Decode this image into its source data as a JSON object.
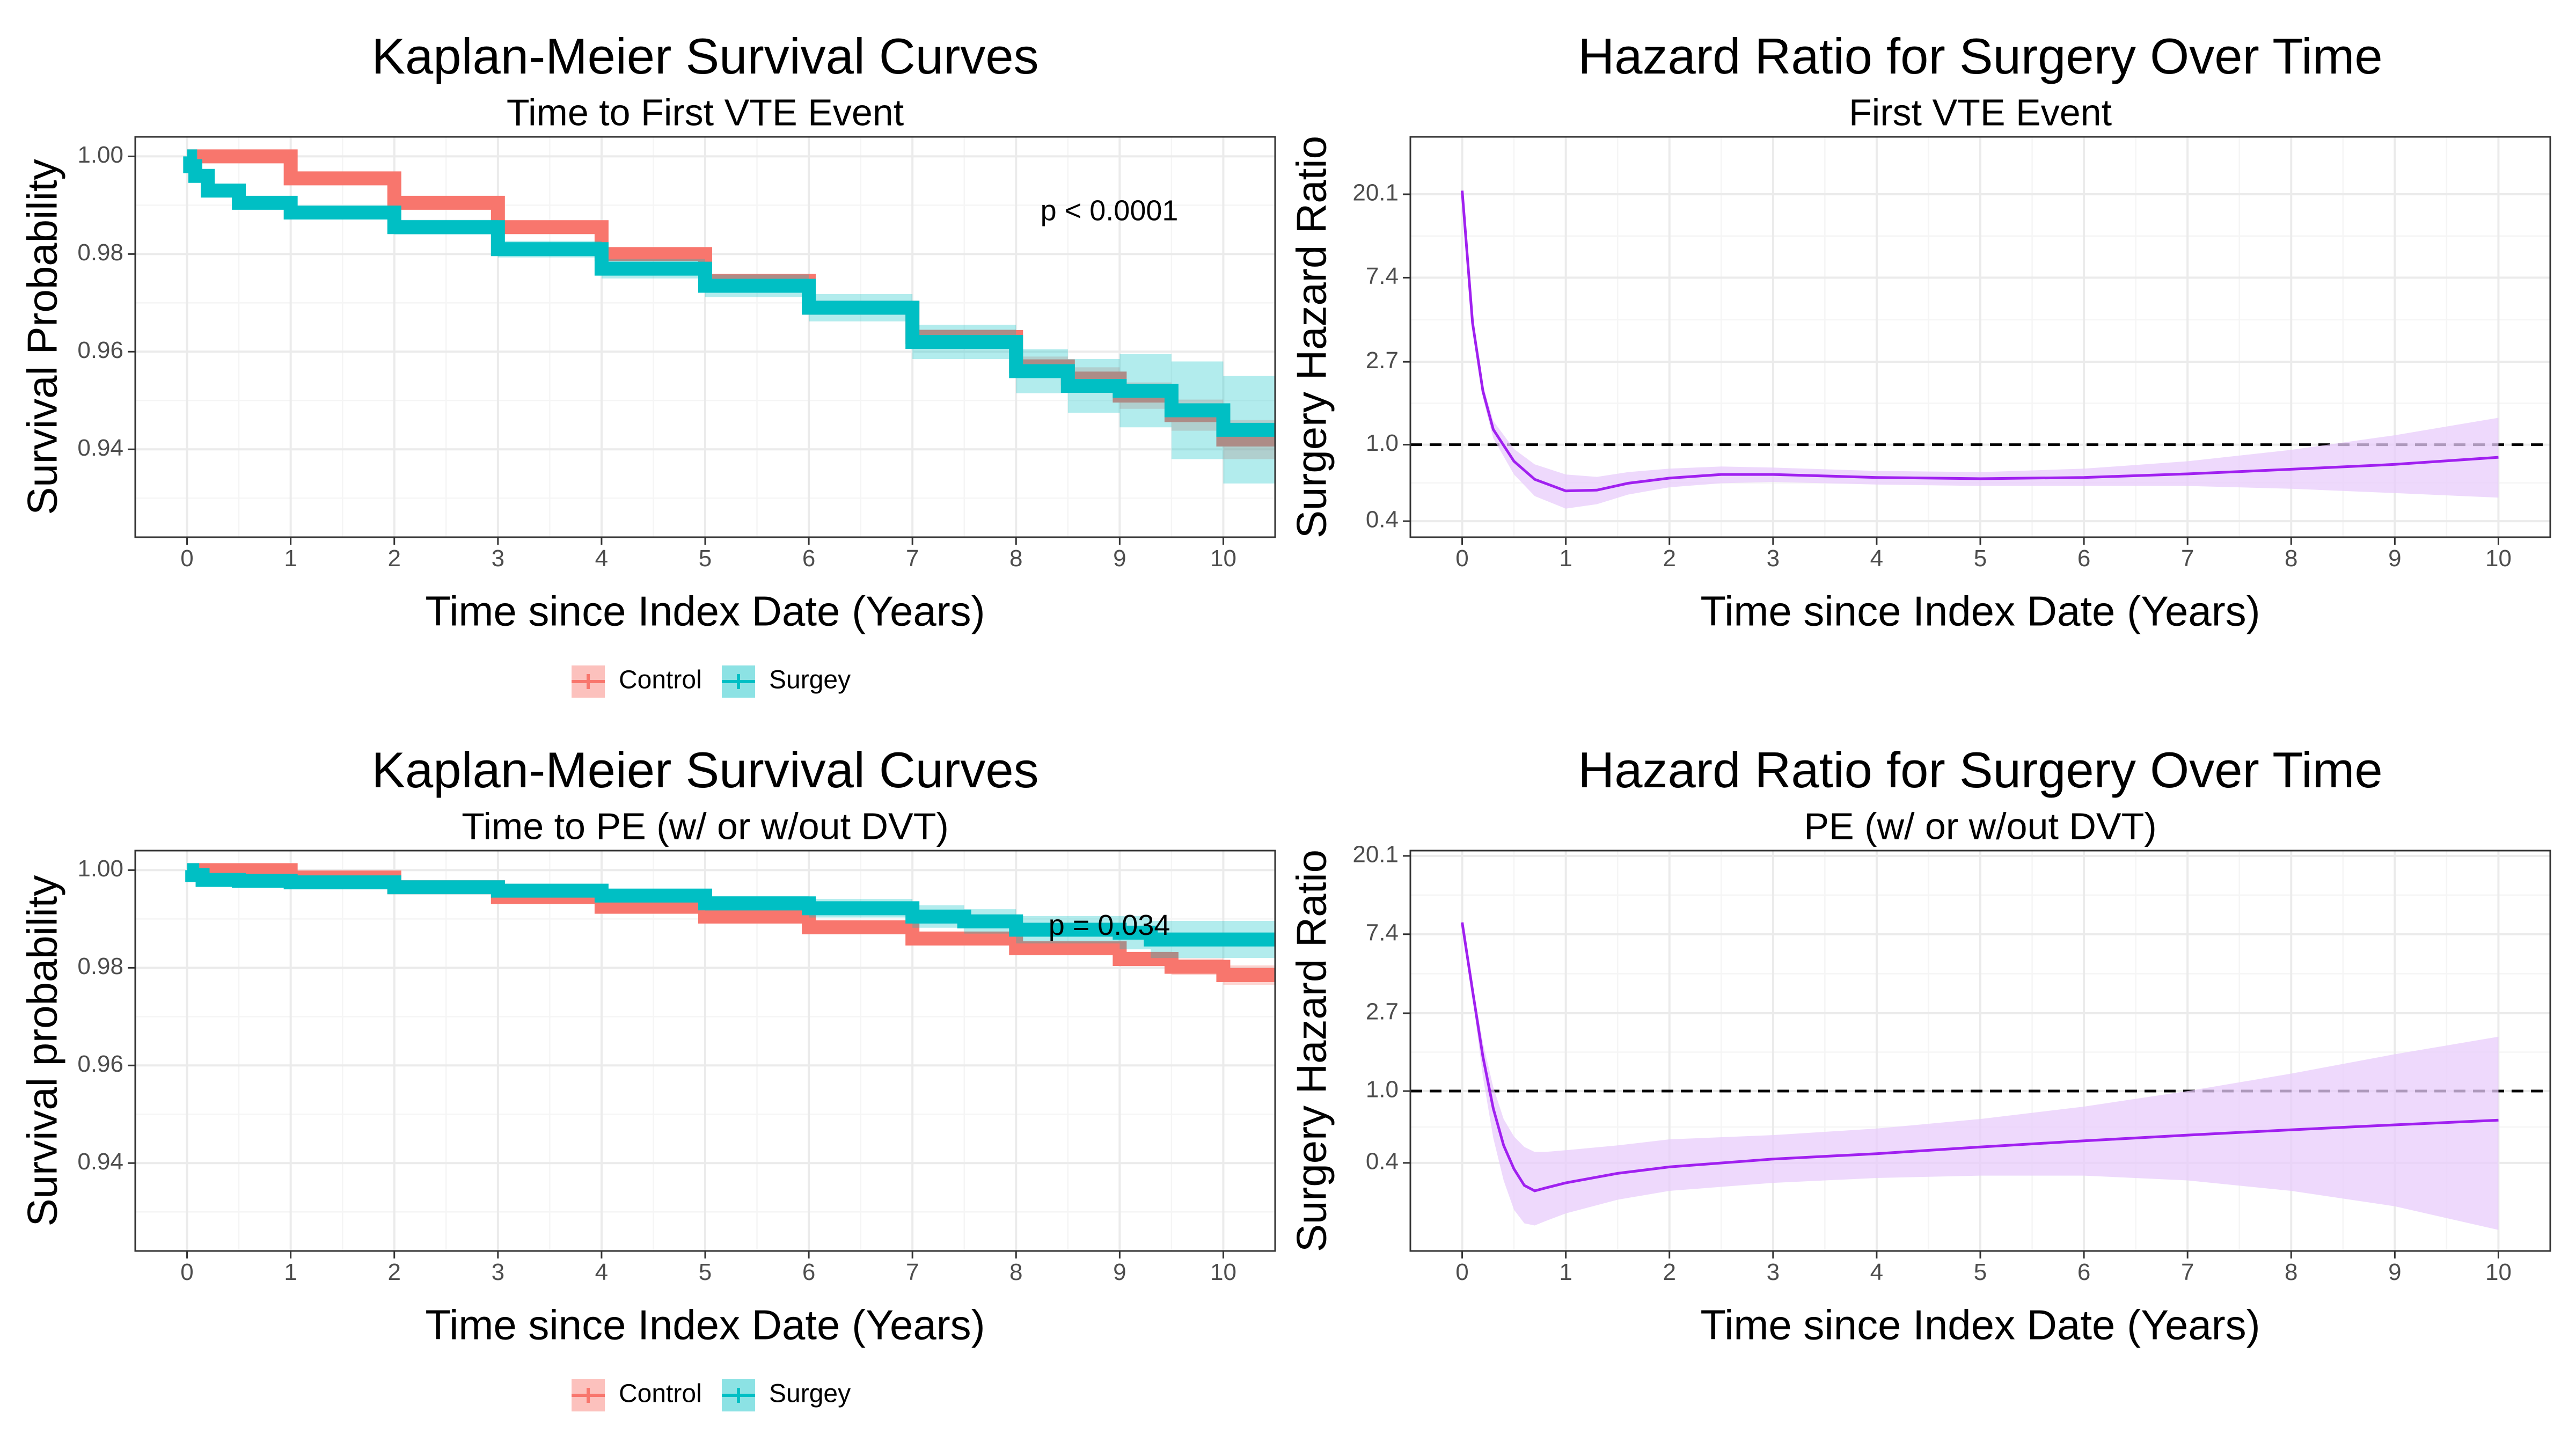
{
  "colors": {
    "control": "#F8766D",
    "surgery": "#00BFC4",
    "hazard": "#A020F0",
    "hazard_band": "#E8CCFB",
    "reference": "#000000"
  },
  "chart_data": [
    {
      "type": "line",
      "title": "Kaplan-Meier Survival Curves",
      "subtitle": "Time to First VTE Event",
      "xlabel": "Time since Index Date (Years)",
      "ylabel": "Survival Probability",
      "xlim": [
        -0.5,
        10.5
      ],
      "ylim": [
        0.922,
        1.004
      ],
      "x_ticks": [
        0,
        1,
        2,
        3,
        4,
        5,
        6,
        7,
        8,
        9,
        10
      ],
      "y_ticks": [
        0.94,
        0.96,
        0.98,
        1.0
      ],
      "y_tick_labels": [
        "0.94",
        "0.96",
        "0.98",
        "1.00"
      ],
      "grid": true,
      "annotation": {
        "text": "p < 0.0001",
        "x": 8.9,
        "y": 0.9885
      },
      "legend": {
        "position": "bottom",
        "entries": [
          "Control",
          "Surgey"
        ]
      },
      "series": [
        {
          "name": "Control",
          "color": "#F8766D",
          "x": [
            0,
            1,
            2,
            3,
            4,
            5,
            6,
            7,
            8,
            8.5,
            9,
            9.5,
            10,
            10.5
          ],
          "y": [
            1.0,
            0.9955,
            0.9905,
            0.9855,
            0.98,
            0.9745,
            0.969,
            0.963,
            0.957,
            0.9545,
            0.951,
            0.947,
            0.942,
            0.942
          ],
          "ci_low": [
            1.0,
            0.9952,
            0.99,
            0.9849,
            0.9792,
            0.9735,
            0.9677,
            0.9614,
            0.955,
            0.9522,
            0.9483,
            0.9438,
            0.938,
            0.938
          ],
          "ci_high": [
            1.0,
            0.9958,
            0.991,
            0.9861,
            0.9808,
            0.9755,
            0.9703,
            0.9646,
            0.959,
            0.9568,
            0.9537,
            0.9502,
            0.946,
            0.946
          ]
        },
        {
          "name": "Surgey",
          "color": "#00BFC4",
          "x": [
            0,
            0.03,
            0.08,
            0.2,
            0.5,
            1,
            2,
            3,
            4,
            5,
            6,
            7,
            8,
            8.5,
            9,
            9.5,
            10,
            10.5
          ],
          "y": [
            1.0,
            0.998,
            0.996,
            0.993,
            0.9905,
            0.9885,
            0.9855,
            0.981,
            0.977,
            0.9735,
            0.969,
            0.962,
            0.956,
            0.953,
            0.952,
            0.948,
            0.944,
            0.944
          ],
          "ci_low": [
            1.0,
            0.9975,
            0.9953,
            0.9921,
            0.9894,
            0.9872,
            0.984,
            0.9793,
            0.975,
            0.9712,
            0.9662,
            0.9585,
            0.9515,
            0.9475,
            0.9445,
            0.938,
            0.933,
            0.933
          ],
          "ci_high": [
            1.0,
            0.9985,
            0.9967,
            0.9939,
            0.9916,
            0.9898,
            0.987,
            0.9827,
            0.979,
            0.9758,
            0.9718,
            0.9655,
            0.9605,
            0.9585,
            0.9595,
            0.958,
            0.955,
            0.955
          ]
        }
      ]
    },
    {
      "type": "line",
      "title": "Hazard Ratio for Surgery Over Time",
      "subtitle": "First VTE Event",
      "xlabel": "Time since Index Date (Years)",
      "ylabel": "Surgery Hazard Ratio",
      "y_scale": "log",
      "xlim": [
        -0.5,
        10.5
      ],
      "ylim": [
        0.33,
        40
      ],
      "x_ticks": [
        0,
        1,
        2,
        3,
        4,
        5,
        6,
        7,
        8,
        9,
        10
      ],
      "y_ticks": [
        0.4,
        1.0,
        2.7,
        7.4,
        20.1
      ],
      "y_tick_labels": [
        "0.4",
        "1.0",
        "2.7",
        "7.4",
        "20.1"
      ],
      "grid": true,
      "reference_line": 1.0,
      "series": [
        {
          "name": "",
          "color": "#A020F0",
          "x": [
            0,
            0.1,
            0.2,
            0.3,
            0.5,
            0.7,
            1.0,
            1.3,
            1.6,
            2,
            2.5,
            3,
            4,
            5,
            6,
            7,
            8,
            9,
            10
          ],
          "y": [
            21.0,
            4.3,
            1.9,
            1.2,
            0.82,
            0.66,
            0.575,
            0.58,
            0.63,
            0.67,
            0.7,
            0.7,
            0.675,
            0.665,
            0.675,
            0.705,
            0.745,
            0.79,
            0.86
          ],
          "ci_low": [
            21.0,
            4.1,
            1.75,
            1.08,
            0.7,
            0.54,
            0.465,
            0.49,
            0.55,
            0.6,
            0.63,
            0.64,
            0.62,
            0.61,
            0.61,
            0.61,
            0.59,
            0.56,
            0.53
          ],
          "ci_high": [
            21.0,
            4.5,
            2.05,
            1.33,
            0.95,
            0.79,
            0.7,
            0.68,
            0.72,
            0.75,
            0.77,
            0.76,
            0.73,
            0.72,
            0.75,
            0.82,
            0.94,
            1.12,
            1.38
          ]
        }
      ]
    },
    {
      "type": "line",
      "title": "Kaplan-Meier Survival Curves",
      "subtitle": "Time to PE (w/ or w/out DVT)",
      "xlabel": "Time since Index Date (Years)",
      "ylabel": "Survival probability",
      "xlim": [
        -0.5,
        10.5
      ],
      "ylim": [
        0.922,
        1.004
      ],
      "x_ticks": [
        0,
        1,
        2,
        3,
        4,
        5,
        6,
        7,
        8,
        9,
        10
      ],
      "y_ticks": [
        0.94,
        0.96,
        0.98,
        1.0
      ],
      "y_tick_labels": [
        "0.94",
        "0.96",
        "0.98",
        "1.00"
      ],
      "grid": true,
      "annotation": {
        "text": "p = 0.034",
        "x": 8.9,
        "y": 0.9883
      },
      "legend": {
        "position": "bottom",
        "entries": [
          "Control",
          "Surgey"
        ]
      },
      "series": [
        {
          "name": "Control",
          "color": "#F8766D",
          "x": [
            0,
            1,
            2,
            3,
            4,
            5,
            6,
            7,
            8,
            9,
            9.5,
            10,
            10.5
          ],
          "y": [
            1.0,
            0.9985,
            0.9965,
            0.9945,
            0.9925,
            0.9905,
            0.9883,
            0.986,
            0.984,
            0.9818,
            0.9802,
            0.9785,
            0.9785
          ],
          "ci_low": [
            1.0,
            0.9983,
            0.9962,
            0.9941,
            0.992,
            0.9899,
            0.9876,
            0.9851,
            0.9829,
            0.9803,
            0.9785,
            0.9765,
            0.9765
          ],
          "ci_high": [
            1.0,
            0.9987,
            0.9968,
            0.9949,
            0.993,
            0.9911,
            0.989,
            0.9869,
            0.9851,
            0.9833,
            0.9819,
            0.9805,
            0.9805
          ]
        },
        {
          "name": "Surgey",
          "color": "#00BFC4",
          "x": [
            0,
            0.05,
            0.15,
            0.5,
            1,
            2,
            3,
            4,
            5,
            6,
            7,
            7.5,
            8,
            9,
            9.3,
            10,
            10.5
          ],
          "y": [
            1.0,
            0.999,
            0.998,
            0.9978,
            0.9975,
            0.9965,
            0.9958,
            0.9948,
            0.9932,
            0.9922,
            0.9905,
            0.9895,
            0.9878,
            0.9872,
            0.9858,
            0.9858,
            0.9858
          ],
          "ci_low": [
            1.0,
            0.9987,
            0.9975,
            0.9972,
            0.9968,
            0.9957,
            0.9948,
            0.9936,
            0.9917,
            0.9903,
            0.9882,
            0.987,
            0.985,
            0.9838,
            0.982,
            0.982,
            0.982
          ],
          "ci_high": [
            1.0,
            0.9993,
            0.9985,
            0.9984,
            0.9982,
            0.9973,
            0.9968,
            0.996,
            0.9947,
            0.9941,
            0.9928,
            0.992,
            0.9906,
            0.9906,
            0.9896,
            0.9896,
            0.9896
          ]
        }
      ]
    },
    {
      "type": "line",
      "title": "Hazard Ratio for Surgery Over Time",
      "subtitle": "PE (w/ or w/out DVT)",
      "xlabel": "Time since Index Date (Years)",
      "ylabel": "Surgery Hazard Ratio",
      "y_scale": "log",
      "xlim": [
        -0.5,
        10.5
      ],
      "ylim": [
        0.13,
        21.5
      ],
      "x_ticks": [
        0,
        1,
        2,
        3,
        4,
        5,
        6,
        7,
        8,
        9,
        10
      ],
      "y_ticks": [
        0.4,
        1.0,
        2.7,
        7.4,
        20.1
      ],
      "y_tick_labels": [
        "0.4",
        "1.0",
        "2.7",
        "7.4",
        "20.1"
      ],
      "grid": true,
      "reference_line": 1.0,
      "series": [
        {
          "name": "",
          "color": "#A020F0",
          "x": [
            0,
            0.1,
            0.2,
            0.3,
            0.4,
            0.5,
            0.6,
            0.7,
            0.8,
            1.0,
            1.5,
            2,
            3,
            4,
            5,
            6,
            7,
            8,
            9,
            10
          ],
          "y": [
            8.6,
            3.6,
            1.55,
            0.8,
            0.5,
            0.37,
            0.3,
            0.28,
            0.29,
            0.31,
            0.35,
            0.38,
            0.42,
            0.45,
            0.49,
            0.53,
            0.57,
            0.61,
            0.65,
            0.69
          ],
          "ci_low": [
            8.6,
            3.3,
            1.2,
            0.55,
            0.32,
            0.22,
            0.185,
            0.18,
            0.19,
            0.21,
            0.25,
            0.28,
            0.31,
            0.33,
            0.34,
            0.34,
            0.32,
            0.28,
            0.23,
            0.17
          ],
          "ci_high": [
            8.6,
            3.9,
            1.85,
            1.05,
            0.7,
            0.56,
            0.49,
            0.46,
            0.46,
            0.47,
            0.5,
            0.54,
            0.57,
            0.62,
            0.7,
            0.82,
            1.0,
            1.25,
            1.6,
            2.0
          ]
        }
      ]
    }
  ]
}
